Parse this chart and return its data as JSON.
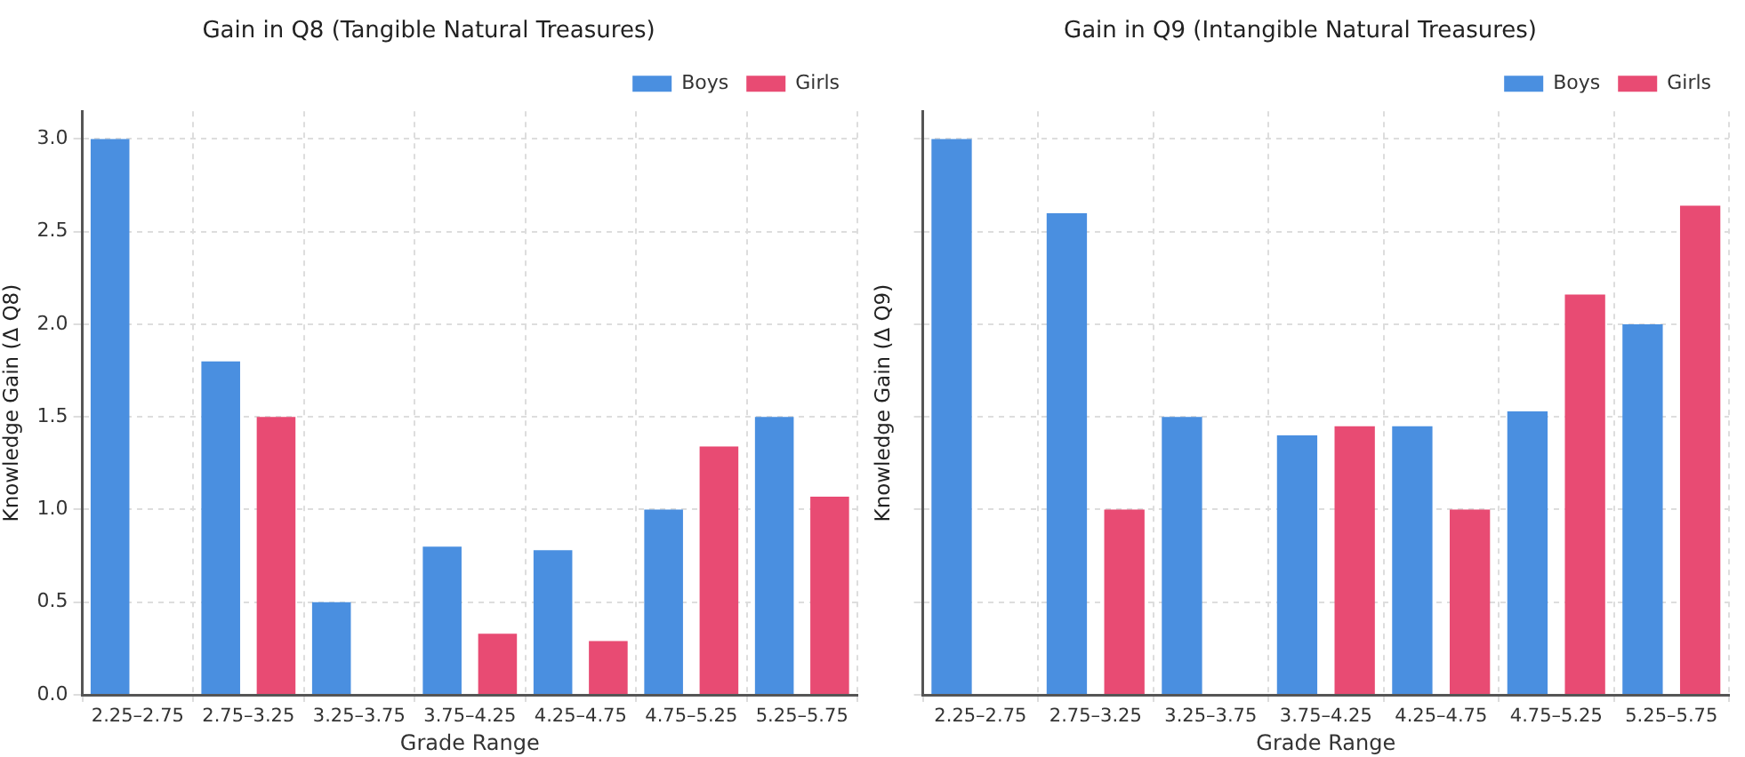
{
  "chart_data": [
    {
      "type": "bar",
      "title": "Gain in Q8 (Tangible Natural Treasures)",
      "xlabel": "Grade Range",
      "ylabel": "Knowledge Gain (Δ Q8)",
      "categories": [
        "2.25–2.75",
        "2.75–3.25",
        "3.25–3.75",
        "3.75–4.25",
        "4.25–4.75",
        "4.75–5.25",
        "5.25–5.75"
      ],
      "series": [
        {
          "name": "Boys",
          "color": "#4a8fe0",
          "values": [
            3.0,
            1.8,
            0.5,
            0.8,
            0.78,
            1.0,
            1.5
          ]
        },
        {
          "name": "Girls",
          "color": "#e84b73",
          "values": [
            null,
            1.5,
            null,
            0.33,
            0.29,
            1.34,
            1.07
          ]
        }
      ],
      "ylim": [
        0,
        3.15
      ],
      "yticks": [
        {
          "value": 0,
          "label": "0.0"
        },
        0.5,
        {
          "value": 1,
          "label": "1.0"
        },
        1.5,
        {
          "value": 2,
          "label": "2.0"
        },
        2.5,
        {
          "value": 3,
          "label": "3.0"
        }
      ],
      "grid": true,
      "legend": "top right"
    },
    {
      "type": "bar",
      "title": "Gain in Q9 (Intangible Natural Treasures)",
      "xlabel": "Grade Range",
      "ylabel": "Knowledge Gain (Δ Q9)",
      "categories": [
        "2.25–2.75",
        "2.75–3.25",
        "3.25–3.75",
        "3.75–4.25",
        "4.25–4.75",
        "4.75–5.25",
        "5.25–5.75"
      ],
      "series": [
        {
          "name": "Boys",
          "color": "#4a8fe0",
          "values": [
            3.0,
            2.6,
            1.5,
            1.4,
            1.45,
            1.53,
            2.0
          ]
        },
        {
          "name": "Girls",
          "color": "#e84b73",
          "values": [
            null,
            1.0,
            null,
            1.45,
            1.0,
            2.16,
            2.64
          ]
        }
      ],
      "ylim": [
        0,
        3.15
      ],
      "yticks": [
        {
          "value": 0,
          "label": null
        },
        {
          "value": 0.5,
          "label": null
        },
        {
          "value": 1,
          "label": null
        },
        {
          "value": 1.5,
          "label": null
        },
        {
          "value": 2,
          "label": null
        },
        {
          "value": 2.5,
          "label": null
        },
        {
          "value": 3,
          "label": null
        }
      ],
      "grid": true,
      "legend": "top right",
      "tick_labels": "x"
    }
  ]
}
